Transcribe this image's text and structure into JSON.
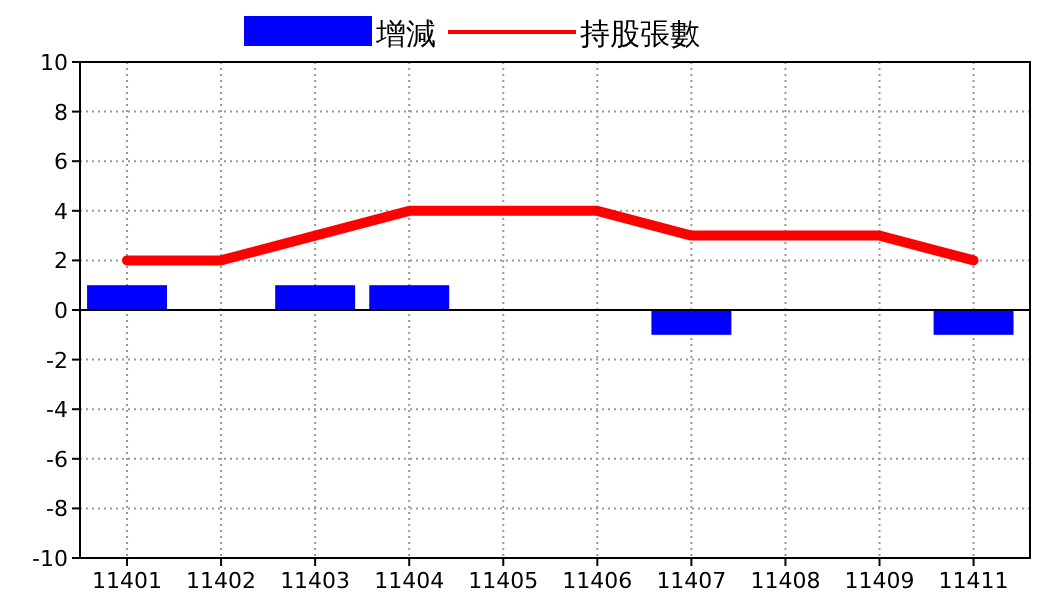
{
  "chart_data": {
    "type": "bar",
    "categories": [
      "11401",
      "11402",
      "11403",
      "11404",
      "11405",
      "11406",
      "11407",
      "11408",
      "11409",
      "11411"
    ],
    "series": [
      {
        "name": "增減",
        "color": "#0000ff",
        "values": [
          1,
          0,
          1,
          1,
          0,
          0,
          -1,
          0,
          0,
          -1
        ]
      },
      {
        "name": "持股張數",
        "type": "line",
        "color": "#ff0000",
        "values": [
          2,
          2,
          3,
          4,
          4,
          4,
          3,
          3,
          3,
          2
        ]
      }
    ],
    "ylim": [
      -10,
      10
    ],
    "yticks": [
      -10,
      -8,
      -6,
      -4,
      -2,
      0,
      2,
      4,
      6,
      8,
      10
    ],
    "grid": true,
    "legend": "top"
  }
}
